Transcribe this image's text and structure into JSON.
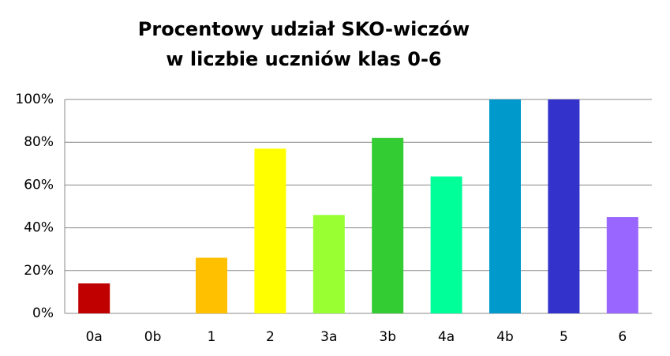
{
  "chart_data": {
    "type": "bar",
    "title": [
      "Procentowy udział SKO-wiczów",
      "w liczbie uczniów klas 0-6"
    ],
    "categories": [
      "0a",
      "0b",
      "1",
      "2",
      "3a",
      "3b",
      "4a",
      "4b",
      "5",
      "6"
    ],
    "values": [
      14,
      0,
      26,
      77,
      46,
      82,
      64,
      100,
      100,
      45
    ],
    "colors": [
      "#c00000",
      "#c00000",
      "#ffc000",
      "#ffff00",
      "#99ff33",
      "#33cc33",
      "#00ff99",
      "#0099cc",
      "#3333cc",
      "#9966ff"
    ],
    "ylim": [
      0,
      100
    ],
    "yticks": [
      {
        "value": 0,
        "label": "0%"
      },
      {
        "value": 20,
        "label": "20%"
      },
      {
        "value": 40,
        "label": "40%"
      },
      {
        "value": 60,
        "label": "60%"
      },
      {
        "value": 80,
        "label": "80%"
      },
      {
        "value": 100,
        "label": "100%"
      }
    ],
    "grid": true
  }
}
